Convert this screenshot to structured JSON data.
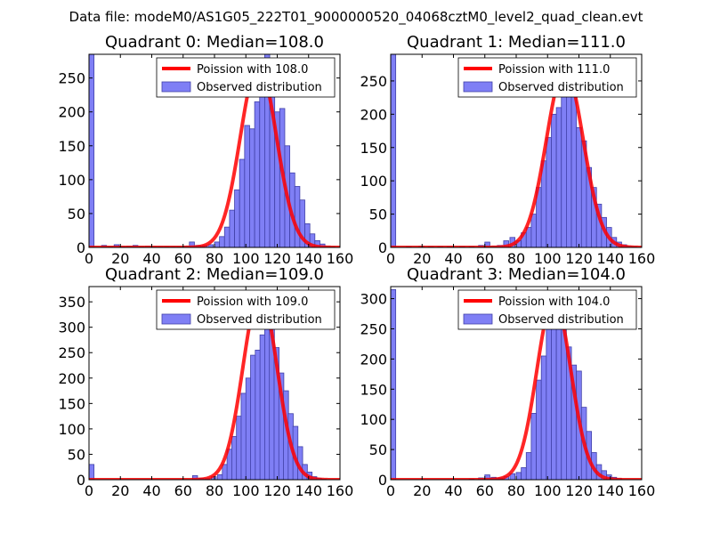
{
  "figure_title": "Data file: modeM0/AS1G05_222T01_9000000520_04068cztM0_level2_quad_clean.evt",
  "colors": {
    "hist_fill": "#7f7ff5",
    "hist_edge": "#4040a8",
    "fit_line": "#ff0000"
  },
  "chart_data": [
    {
      "type": "bar",
      "title": "Quadrant 0: Median=108.0",
      "xlim": [
        0,
        160
      ],
      "ylim": [
        0,
        285
      ],
      "xticks": [
        "0",
        "20",
        "40",
        "60",
        "80",
        "100",
        "120",
        "140",
        "160"
      ],
      "yticks": [
        0,
        50,
        100,
        150,
        200,
        250
      ],
      "bin_width": 3.2,
      "bins": [
        [
          0,
          285
        ],
        [
          8,
          3
        ],
        [
          12,
          1
        ],
        [
          16,
          4
        ],
        [
          20,
          1
        ],
        [
          24,
          2
        ],
        [
          28,
          3
        ],
        [
          32,
          1
        ],
        [
          36,
          2
        ],
        [
          40,
          1
        ],
        [
          44,
          1
        ],
        [
          48,
          1
        ],
        [
          52,
          1
        ],
        [
          56,
          1
        ],
        [
          60,
          2
        ],
        [
          64,
          8
        ],
        [
          68,
          3
        ],
        [
          72,
          3
        ],
        [
          76,
          4
        ],
        [
          80,
          8
        ],
        [
          83.2,
          16
        ],
        [
          86.4,
          30
        ],
        [
          89.6,
          55
        ],
        [
          92.8,
          85
        ],
        [
          96,
          130
        ],
        [
          99.2,
          180
        ],
        [
          102.4,
          175
        ],
        [
          105.6,
          215
        ],
        [
          108.8,
          250
        ],
        [
          112,
          285
        ],
        [
          115.2,
          240
        ],
        [
          118.4,
          200
        ],
        [
          121.6,
          205
        ],
        [
          124.8,
          150
        ],
        [
          128,
          110
        ],
        [
          131.2,
          90
        ],
        [
          134.4,
          70
        ],
        [
          137.6,
          35
        ],
        [
          140.8,
          20
        ],
        [
          144,
          10
        ],
        [
          147.2,
          5
        ],
        [
          150.4,
          2
        ],
        [
          153.6,
          1
        ]
      ],
      "fit": {
        "mean": 108.0,
        "peak": 270,
        "sigma": 11.5,
        "label": "Poission with 108.0"
      },
      "legend": [
        "Poission with 108.0",
        "Observed distribution"
      ]
    },
    {
      "type": "bar",
      "title": "Quadrant 1: Median=111.0",
      "xlim": [
        0,
        160
      ],
      "ylim": [
        0,
        290
      ],
      "xticks": [
        "0",
        "20",
        "40",
        "60",
        "80",
        "100",
        "120",
        "140",
        "160"
      ],
      "yticks": [
        0,
        50,
        100,
        150,
        200,
        250
      ],
      "bin_width": 3.2,
      "bins": [
        [
          0,
          290
        ],
        [
          10,
          1
        ],
        [
          18,
          2
        ],
        [
          24,
          1
        ],
        [
          30,
          1
        ],
        [
          36,
          1
        ],
        [
          44,
          1
        ],
        [
          50,
          1
        ],
        [
          56,
          3
        ],
        [
          60,
          8
        ],
        [
          64,
          2
        ],
        [
          68,
          3
        ],
        [
          72,
          10
        ],
        [
          76,
          15
        ],
        [
          80,
          10
        ],
        [
          83.2,
          22
        ],
        [
          86.4,
          30
        ],
        [
          89.6,
          50
        ],
        [
          92.8,
          90
        ],
        [
          96,
          130
        ],
        [
          99.2,
          165
        ],
        [
          102.4,
          200
        ],
        [
          105.6,
          210
        ],
        [
          108.8,
          240
        ],
        [
          112,
          250
        ],
        [
          115.2,
          245
        ],
        [
          118.4,
          180
        ],
        [
          121.6,
          160
        ],
        [
          124.8,
          120
        ],
        [
          128,
          90
        ],
        [
          131.2,
          65
        ],
        [
          134.4,
          45
        ],
        [
          137.6,
          30
        ],
        [
          140.8,
          15
        ],
        [
          144,
          8
        ],
        [
          147.2,
          4
        ],
        [
          150.4,
          2
        ],
        [
          153.6,
          1
        ]
      ],
      "fit": {
        "mean": 111.0,
        "peak": 268,
        "sigma": 11.7,
        "label": "Poission with 111.0"
      },
      "legend": [
        "Poission with 111.0",
        "Observed distribution"
      ]
    },
    {
      "type": "bar",
      "title": "Quadrant 2: Median=109.0",
      "xlim": [
        0,
        160
      ],
      "ylim": [
        0,
        380
      ],
      "xticks": [
        "0",
        "20",
        "40",
        "60",
        "80",
        "100",
        "120",
        "140",
        "160"
      ],
      "yticks": [
        0,
        50,
        100,
        150,
        200,
        250,
        300,
        350
      ],
      "bin_width": 3.2,
      "bins": [
        [
          0,
          30
        ],
        [
          66,
          8
        ],
        [
          70,
          3
        ],
        [
          74,
          2
        ],
        [
          78,
          6
        ],
        [
          82,
          10
        ],
        [
          85,
          30
        ],
        [
          88,
          60
        ],
        [
          91,
          85
        ],
        [
          94,
          125
        ],
        [
          97,
          170
        ],
        [
          100,
          200
        ],
        [
          103,
          245
        ],
        [
          106,
          255
        ],
        [
          109,
          285
        ],
        [
          112,
          325
        ],
        [
          115,
          320
        ],
        [
          118,
          260
        ],
        [
          121,
          210
        ],
        [
          124,
          175
        ],
        [
          127,
          130
        ],
        [
          130,
          105
        ],
        [
          133,
          65
        ],
        [
          136,
          30
        ],
        [
          139,
          15
        ],
        [
          142,
          6
        ],
        [
          145,
          3
        ],
        [
          148,
          1
        ]
      ],
      "fit": {
        "mean": 109.0,
        "peak": 368,
        "sigma": 10.8,
        "label": "Poission with 109.0"
      },
      "legend": [
        "Poission with 109.0",
        "Observed distribution"
      ]
    },
    {
      "type": "bar",
      "title": "Quadrant 3: Median=104.0",
      "xlim": [
        0,
        160
      ],
      "ylim": [
        0,
        320
      ],
      "xticks": [
        "0",
        "20",
        "40",
        "60",
        "80",
        "100",
        "120",
        "140",
        "160"
      ],
      "yticks": [
        0,
        50,
        100,
        150,
        200,
        250,
        300
      ],
      "bin_width": 3.2,
      "bins": [
        [
          0,
          315
        ],
        [
          50,
          1
        ],
        [
          56,
          3
        ],
        [
          60,
          8
        ],
        [
          64,
          4
        ],
        [
          68,
          3
        ],
        [
          72,
          5
        ],
        [
          76,
          10
        ],
        [
          80,
          12
        ],
        [
          83.2,
          20
        ],
        [
          86.4,
          45
        ],
        [
          89.6,
          110
        ],
        [
          92.8,
          165
        ],
        [
          96,
          205
        ],
        [
          99.2,
          265
        ],
        [
          102.4,
          280
        ],
        [
          105.6,
          295
        ],
        [
          108.8,
          260
        ],
        [
          112,
          220
        ],
        [
          115.2,
          190
        ],
        [
          118.4,
          180
        ],
        [
          121.6,
          120
        ],
        [
          124.8,
          80
        ],
        [
          128,
          45
        ],
        [
          131.2,
          25
        ],
        [
          134.4,
          15
        ],
        [
          137.6,
          8
        ],
        [
          140.8,
          4
        ],
        [
          144,
          2
        ]
      ],
      "fit": {
        "mean": 104.0,
        "peak": 300,
        "sigma": 10.8,
        "label": "Poission with 104.0"
      },
      "legend": [
        "Poission with 104.0",
        "Observed distribution"
      ]
    }
  ]
}
